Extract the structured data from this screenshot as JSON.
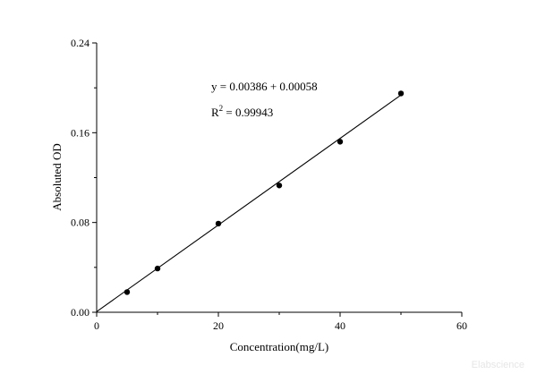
{
  "chart_data": {
    "type": "scatter",
    "title": "",
    "xlabel": "Concentration(mg/L)",
    "ylabel": "Absoluted OD",
    "xlim": [
      0,
      60
    ],
    "ylim": [
      0,
      0.24
    ],
    "x_ticks": [
      "0",
      "20",
      "40",
      "60"
    ],
    "y_ticks": [
      "0.00",
      "0.08",
      "0.16",
      "0.24"
    ],
    "grid": false,
    "series": [
      {
        "x": [
          5,
          10,
          20,
          30,
          40,
          50
        ],
        "y": [
          0.018,
          0.039,
          0.079,
          0.113,
          0.152,
          0.195
        ]
      }
    ],
    "fit_line": {
      "x": [
        0,
        50
      ],
      "y": [
        0.00058,
        0.19358
      ]
    },
    "annotations": {
      "equation": "y = 0.00386 + 0.00058",
      "r2_prefix": "R",
      "r2_sup": "2",
      "r2_value": " = 0.99943"
    }
  },
  "watermark": "Elabscience"
}
